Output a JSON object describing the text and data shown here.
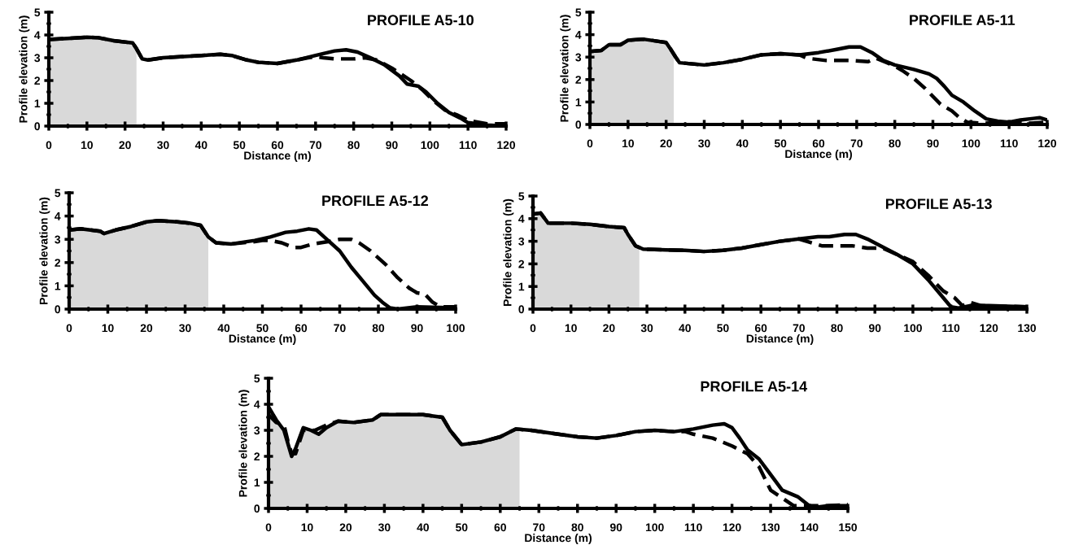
{
  "chart_data": [
    {
      "type": "line",
      "title": "PROFILE A5-10",
      "xlabel": "Distance (m)",
      "ylabel": "Profile elevation (m)",
      "xlim": [
        0,
        120
      ],
      "ylim": [
        0,
        5
      ],
      "xticks": [
        0,
        10,
        20,
        30,
        40,
        50,
        60,
        70,
        80,
        90,
        100,
        110,
        120
      ],
      "yticks": [
        0,
        1,
        2,
        3,
        4,
        5
      ],
      "series": [
        {
          "type": "area",
          "color": "#d9d9d9",
          "x": [
            0,
            5,
            10,
            13,
            17,
            22,
            23
          ],
          "values": [
            3.8,
            3.85,
            3.9,
            3.88,
            3.75,
            3.65,
            3.4
          ]
        },
        {
          "color": "#000000",
          "line_style": "solid",
          "x": [
            0,
            5,
            10,
            13,
            17,
            22,
            23,
            24.5,
            26,
            30,
            40,
            45,
            48,
            52,
            55,
            60,
            65,
            70,
            75,
            78,
            81,
            85,
            88,
            92,
            94,
            97,
            99,
            102,
            105,
            108,
            110,
            115,
            118,
            120
          ],
          "values": [
            3.8,
            3.85,
            3.9,
            3.88,
            3.75,
            3.65,
            3.4,
            2.95,
            2.9,
            3.0,
            3.1,
            3.15,
            3.1,
            2.9,
            2.8,
            2.75,
            2.9,
            3.1,
            3.3,
            3.35,
            3.25,
            2.95,
            2.7,
            2.2,
            1.85,
            1.75,
            1.5,
            1.0,
            0.6,
            0.35,
            0.15,
            0.05,
            0.02,
            0.1
          ]
        },
        {
          "color": "#000000",
          "line_style": "dashed",
          "x": [
            0,
            5,
            10,
            13,
            17,
            22,
            23,
            24.5,
            26,
            30,
            40,
            45,
            48,
            52,
            55,
            60,
            65,
            68,
            70,
            72,
            75,
            80,
            83,
            86,
            90,
            95,
            98,
            101,
            104,
            107,
            110,
            115,
            120
          ],
          "values": [
            3.8,
            3.85,
            3.9,
            3.88,
            3.75,
            3.65,
            3.4,
            2.95,
            2.9,
            3.0,
            3.1,
            3.15,
            3.1,
            2.9,
            2.8,
            2.75,
            2.9,
            3.0,
            3.05,
            3.0,
            2.95,
            2.95,
            3.0,
            2.9,
            2.55,
            2.0,
            1.6,
            1.1,
            0.7,
            0.5,
            0.25,
            0.1,
            0.1
          ]
        }
      ]
    },
    {
      "type": "line",
      "title": "PROFILE A5-11",
      "xlabel": "Distance (m)",
      "ylabel": "Profile elevation (m)",
      "xlim": [
        0,
        120
      ],
      "ylim": [
        0,
        5
      ],
      "xticks": [
        0,
        10,
        20,
        30,
        40,
        50,
        60,
        70,
        80,
        90,
        100,
        110,
        120
      ],
      "yticks": [
        0,
        1,
        2,
        3,
        4,
        5
      ],
      "series": [
        {
          "type": "area",
          "color": "#d9d9d9",
          "x": [
            0,
            3,
            5,
            8,
            10,
            14,
            18,
            20,
            21,
            22
          ],
          "values": [
            3.25,
            3.3,
            3.55,
            3.55,
            3.75,
            3.8,
            3.7,
            3.65,
            3.4,
            3.1
          ]
        },
        {
          "color": "#000000",
          "line_style": "solid",
          "x": [
            0,
            3,
            5,
            8,
            10,
            14,
            18,
            20,
            21,
            22.5,
            23.5,
            30,
            35,
            40,
            45,
            50,
            55,
            60,
            65,
            68,
            71,
            74,
            77,
            80,
            85,
            89,
            91,
            93,
            95,
            98,
            101,
            104,
            107,
            110,
            113,
            118,
            120
          ],
          "values": [
            3.25,
            3.3,
            3.55,
            3.55,
            3.75,
            3.8,
            3.7,
            3.65,
            3.4,
            3.0,
            2.75,
            2.65,
            2.75,
            2.9,
            3.1,
            3.15,
            3.1,
            3.2,
            3.35,
            3.45,
            3.45,
            3.2,
            2.85,
            2.65,
            2.45,
            2.25,
            2.05,
            1.7,
            1.3,
            1.0,
            0.6,
            0.25,
            0.15,
            0.1,
            0.2,
            0.3,
            0.2
          ]
        },
        {
          "color": "#000000",
          "line_style": "dashed",
          "x": [
            0,
            3,
            5,
            8,
            10,
            14,
            18,
            20,
            21,
            22.5,
            23.5,
            30,
            35,
            40,
            45,
            50,
            55,
            57,
            62,
            68,
            73,
            75,
            78,
            80,
            82,
            85,
            88,
            92,
            95,
            97,
            99,
            103,
            110,
            115,
            120
          ],
          "values": [
            3.25,
            3.3,
            3.55,
            3.55,
            3.75,
            3.8,
            3.7,
            3.65,
            3.4,
            3.0,
            2.75,
            2.65,
            2.75,
            2.9,
            3.1,
            3.15,
            3.1,
            2.95,
            2.85,
            2.85,
            2.8,
            2.95,
            2.75,
            2.6,
            2.4,
            2.05,
            1.6,
            0.9,
            0.6,
            0.3,
            0.1,
            0.05,
            0.1,
            0.05,
            0.1
          ]
        }
      ]
    },
    {
      "type": "line",
      "title": "PROFILE A5-12",
      "xlabel": "Distance (m)",
      "ylabel": "Profile elevation (m)",
      "xlim": [
        0,
        100
      ],
      "ylim": [
        0,
        5
      ],
      "xticks": [
        0,
        10,
        20,
        30,
        40,
        50,
        60,
        70,
        80,
        90,
        100
      ],
      "yticks": [
        0,
        1,
        2,
        3,
        4,
        5
      ],
      "series": [
        {
          "type": "area",
          "color": "#d9d9d9",
          "x": [
            0,
            3,
            8,
            9,
            12,
            16,
            20,
            23,
            28,
            31,
            34,
            36
          ],
          "values": [
            3.4,
            3.45,
            3.35,
            3.25,
            3.4,
            3.55,
            3.75,
            3.8,
            3.75,
            3.7,
            3.6,
            3.1
          ]
        },
        {
          "color": "#000000",
          "line_style": "solid",
          "x": [
            0,
            3,
            8,
            9,
            12,
            16,
            20,
            23,
            28,
            31,
            34,
            36,
            38,
            42,
            48,
            52,
            56,
            59,
            62,
            64,
            66,
            70,
            73,
            76,
            79,
            81,
            83,
            85,
            90,
            100
          ],
          "values": [
            3.4,
            3.45,
            3.35,
            3.25,
            3.4,
            3.55,
            3.75,
            3.8,
            3.75,
            3.7,
            3.6,
            3.1,
            2.85,
            2.8,
            2.95,
            3.1,
            3.3,
            3.35,
            3.45,
            3.4,
            3.1,
            2.5,
            1.8,
            1.2,
            0.6,
            0.3,
            0.05,
            0.0,
            0.1,
            0.05
          ]
        },
        {
          "color": "#000000",
          "line_style": "dashed",
          "x": [
            0,
            3,
            8,
            9,
            12,
            16,
            20,
            23,
            28,
            31,
            34,
            36,
            38,
            42,
            48,
            50,
            52,
            55,
            58,
            60,
            63,
            67,
            70,
            73,
            75,
            78,
            82,
            85,
            88,
            90,
            92,
            94,
            96,
            100
          ],
          "values": [
            3.4,
            3.45,
            3.35,
            3.25,
            3.4,
            3.55,
            3.75,
            3.8,
            3.75,
            3.7,
            3.6,
            3.1,
            2.85,
            2.8,
            2.9,
            2.95,
            2.95,
            2.85,
            2.65,
            2.65,
            2.8,
            2.9,
            3.0,
            3.0,
            2.85,
            2.5,
            1.9,
            1.35,
            0.9,
            0.7,
            0.65,
            0.3,
            0.1,
            0.1
          ]
        }
      ]
    },
    {
      "type": "line",
      "title": "PROFILE A5-13",
      "xlabel": "Distance (m)",
      "ylabel": "Profile elevation (m)",
      "xlim": [
        0,
        130
      ],
      "ylim": [
        0,
        5
      ],
      "xticks": [
        0,
        10,
        20,
        30,
        40,
        50,
        60,
        70,
        80,
        90,
        100,
        110,
        120,
        130
      ],
      "yticks": [
        0,
        1,
        2,
        3,
        4,
        5
      ],
      "series": [
        {
          "type": "area",
          "color": "#d9d9d9",
          "x": [
            0,
            2,
            4,
            6,
            10,
            15,
            20,
            24,
            25,
            27,
            28
          ],
          "values": [
            4.2,
            4.25,
            3.8,
            3.8,
            3.8,
            3.75,
            3.65,
            3.6,
            3.3,
            2.8,
            2.7
          ]
        },
        {
          "color": "#000000",
          "line_style": "solid",
          "x": [
            0,
            2,
            4,
            6,
            10,
            15,
            20,
            24,
            25,
            27,
            29,
            35,
            40,
            45,
            50,
            55,
            60,
            65,
            70,
            75,
            78,
            82,
            85,
            88,
            92,
            96,
            100,
            104,
            107,
            110,
            112,
            115,
            120,
            130
          ],
          "values": [
            4.2,
            4.25,
            3.8,
            3.8,
            3.8,
            3.75,
            3.65,
            3.6,
            3.3,
            2.8,
            2.65,
            2.62,
            2.6,
            2.55,
            2.6,
            2.7,
            2.85,
            3.0,
            3.1,
            3.2,
            3.2,
            3.3,
            3.3,
            3.1,
            2.75,
            2.4,
            2.0,
            1.3,
            0.7,
            0.1,
            0.05,
            0.15,
            0.15,
            0.1
          ]
        },
        {
          "color": "#000000",
          "line_style": "dashed",
          "x": [
            0,
            2,
            4,
            6,
            10,
            15,
            20,
            24,
            25,
            27,
            29,
            35,
            40,
            45,
            50,
            55,
            60,
            65,
            70,
            72,
            76,
            80,
            84,
            88,
            92,
            96,
            100,
            104,
            108,
            111,
            113,
            115,
            118,
            130
          ],
          "values": [
            4.2,
            4.25,
            3.8,
            3.8,
            3.8,
            3.75,
            3.65,
            3.6,
            3.3,
            2.8,
            2.65,
            2.62,
            2.6,
            2.55,
            2.6,
            2.7,
            2.85,
            3.0,
            3.1,
            3.0,
            2.8,
            2.8,
            2.8,
            2.7,
            2.7,
            2.4,
            2.1,
            1.5,
            0.8,
            0.5,
            0.15,
            0.3,
            0.15,
            0.1
          ]
        }
      ]
    },
    {
      "type": "line",
      "title": "PROFILE A5-14",
      "xlabel": "Distance (m)",
      "ylabel": "Profile elevation (m)",
      "xlim": [
        0,
        150
      ],
      "ylim": [
        0,
        5
      ],
      "xticks": [
        0,
        10,
        20,
        30,
        40,
        50,
        60,
        70,
        80,
        90,
        100,
        110,
        120,
        130,
        140,
        150
      ],
      "yticks": [
        0,
        1,
        2,
        3,
        4,
        5
      ],
      "series": [
        {
          "type": "area",
          "color": "#d9d9d9",
          "x": [
            0,
            2,
            4,
            6,
            7,
            9,
            11,
            13,
            15,
            18,
            22,
            27,
            29,
            35,
            40,
            45,
            47,
            50,
            55,
            60,
            64,
            65
          ],
          "values": [
            3.9,
            3.4,
            3.0,
            2.0,
            2.3,
            3.1,
            3.0,
            2.85,
            3.1,
            3.35,
            3.3,
            3.4,
            3.6,
            3.6,
            3.6,
            3.5,
            3.0,
            2.45,
            2.55,
            2.75,
            3.05,
            3.0
          ]
        },
        {
          "color": "#000000",
          "line_style": "solid",
          "x": [
            0,
            2,
            4,
            6,
            7,
            9,
            11,
            13,
            15,
            18,
            22,
            27,
            29,
            35,
            40,
            45,
            47,
            50,
            55,
            60,
            64,
            68,
            75,
            80,
            85,
            90,
            95,
            100,
            105,
            110,
            115,
            118,
            120,
            122,
            124,
            127,
            130,
            133,
            137,
            140,
            142,
            145,
            150
          ],
          "values": [
            3.9,
            3.4,
            3.0,
            2.0,
            2.3,
            3.1,
            3.0,
            2.85,
            3.1,
            3.35,
            3.3,
            3.4,
            3.6,
            3.6,
            3.6,
            3.5,
            3.0,
            2.45,
            2.55,
            2.75,
            3.05,
            3.0,
            2.85,
            2.75,
            2.7,
            2.8,
            2.95,
            3.0,
            2.95,
            3.05,
            3.2,
            3.25,
            3.1,
            2.7,
            2.25,
            1.9,
            1.3,
            0.7,
            0.45,
            0.1,
            0.05,
            0.1,
            0.1
          ]
        },
        {
          "color": "#000000",
          "line_style": "dashed",
          "x": [
            0,
            2,
            4,
            5,
            6,
            7,
            9,
            12,
            15,
            18,
            22,
            27,
            29,
            35,
            40,
            45,
            47,
            50,
            55,
            60,
            64,
            68,
            75,
            80,
            85,
            90,
            95,
            100,
            105,
            108,
            110,
            115,
            120,
            124,
            127,
            130,
            133,
            136,
            140,
            145,
            150
          ],
          "values": [
            3.6,
            3.3,
            3.2,
            2.6,
            2.1,
            2.1,
            3.0,
            3.0,
            3.2,
            3.35,
            3.3,
            3.4,
            3.6,
            3.6,
            3.6,
            3.5,
            3.0,
            2.45,
            2.55,
            2.75,
            3.05,
            3.0,
            2.85,
            2.75,
            2.7,
            2.8,
            2.95,
            3.0,
            2.95,
            2.95,
            2.85,
            2.7,
            2.4,
            2.1,
            1.6,
            0.7,
            0.4,
            0.1,
            0.1,
            0.1,
            0.15
          ]
        }
      ]
    }
  ]
}
